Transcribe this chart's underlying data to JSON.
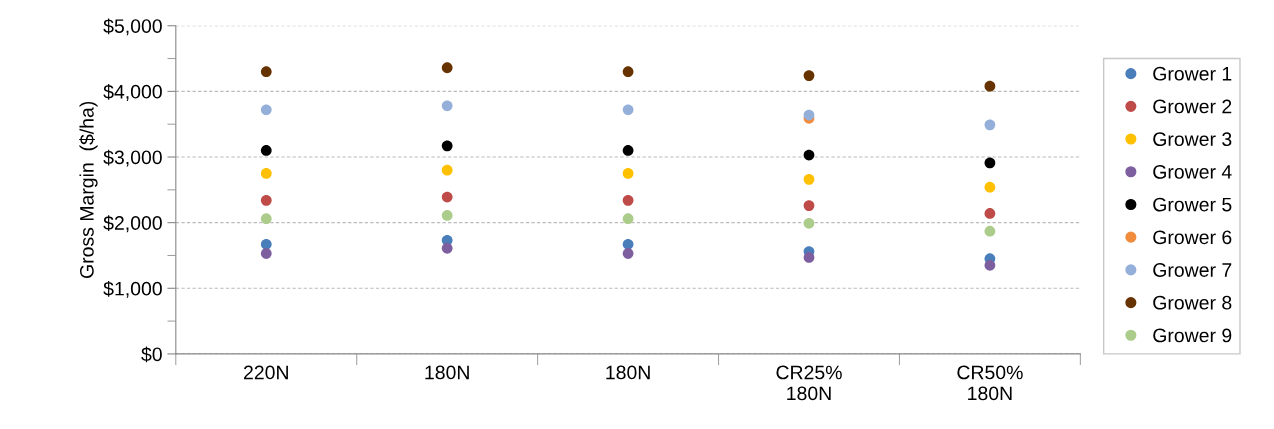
{
  "chart_data": {
    "type": "scatter",
    "ylabel": "Gross Margin  ($/ha)",
    "categories": [
      "220N",
      "180N",
      "180N",
      "CR25%\n180N",
      "CR50%\n180N"
    ],
    "ylim": [
      0,
      5000
    ],
    "yticks": [
      {
        "value": 0,
        "label": "$0"
      },
      {
        "value": 1000,
        "label": "$1,000"
      },
      {
        "value": 2000,
        "label": "$2,000"
      },
      {
        "value": 3000,
        "label": "$3,000"
      },
      {
        "value": 4000,
        "label": "$4,000"
      },
      {
        "value": 5000,
        "label": "$5,000"
      }
    ],
    "grid": "y",
    "legend": "right",
    "marker": "circle",
    "series": [
      {
        "name": "Grower 1",
        "color": "#4a7ebb",
        "values": [
          1670,
          1730,
          1670,
          1560,
          1450
        ]
      },
      {
        "name": "Grower 2",
        "color": "#be4b48",
        "values": [
          2340,
          2390,
          2340,
          2260,
          2140
        ]
      },
      {
        "name": "Grower 3",
        "color": "#ffc000",
        "values": [
          2750,
          2800,
          2750,
          2660,
          2540
        ]
      },
      {
        "name": "Grower 4",
        "color": "#7d5fa0",
        "values": [
          1530,
          1610,
          1530,
          1470,
          1350
        ]
      },
      {
        "name": "Grower 5",
        "color": "#000000",
        "values": [
          3100,
          3170,
          3100,
          3030,
          2910
        ]
      },
      {
        "name": "Grower 6",
        "color": "#f08c3c",
        "values": [
          null,
          null,
          null,
          3590,
          null
        ]
      },
      {
        "name": "Grower 7",
        "color": "#94afd9",
        "values": [
          3720,
          3780,
          3720,
          3640,
          3490
        ]
      },
      {
        "name": "Grower 8",
        "color": "#663300",
        "values": [
          4300,
          4360,
          4300,
          4240,
          4080
        ]
      },
      {
        "name": "Grower 9",
        "color": "#abcc8a",
        "values": [
          2060,
          2110,
          2060,
          1990,
          1870
        ]
      }
    ]
  }
}
